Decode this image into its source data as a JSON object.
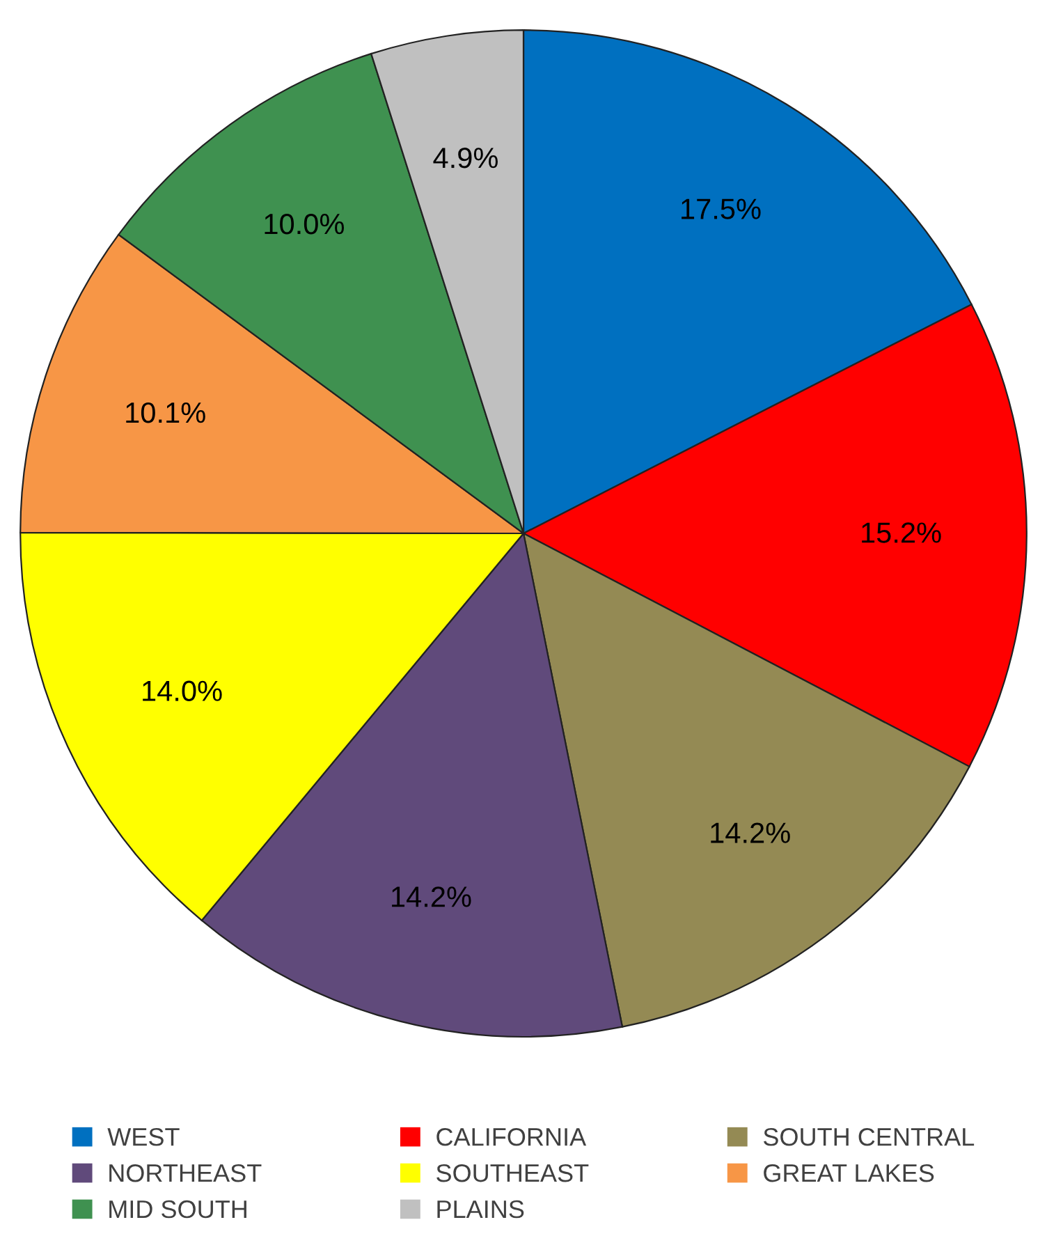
{
  "chart_data": {
    "type": "pie",
    "categories": [
      "WEST",
      "CALIFORNIA",
      "SOUTH CENTRAL",
      "NORTHEAST",
      "SOUTHEAST",
      "GREAT LAKES",
      "MID SOUTH",
      "PLAINS"
    ],
    "values": [
      17.5,
      15.2,
      14.2,
      14.2,
      14.0,
      10.1,
      10.0,
      4.9
    ],
    "colors": [
      "#0070c0",
      "#ff0000",
      "#948a54",
      "#604a7b",
      "#ffff00",
      "#f79646",
      "#3f9150",
      "#c0c0c0"
    ],
    "value_labels": [
      "17.5%",
      "15.2%",
      "14.2%",
      "14.2%",
      "14.0%",
      "10.1%",
      "10.0%",
      "4.9%"
    ],
    "legend": "bottom"
  }
}
